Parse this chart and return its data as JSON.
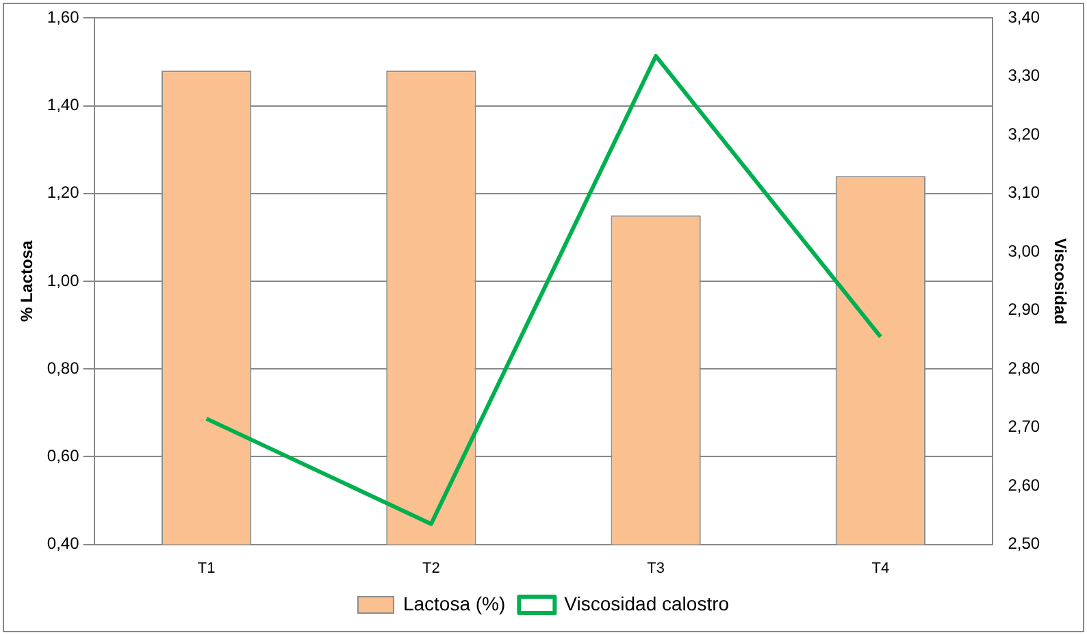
{
  "chart_data": {
    "type": "bar",
    "categories": [
      "T1",
      "T2",
      "T3",
      "T4"
    ],
    "series": [
      {
        "name": "Lactosa (%)",
        "color": "#fac090",
        "values": [
          1.48,
          1.48,
          1.15,
          1.24
        ]
      },
      {
        "name": "Viscosidad calostro",
        "type": "line",
        "axis": "y2",
        "color": "#00b050",
        "values": [
          2.715,
          2.535,
          3.335,
          2.855
        ]
      }
    ],
    "ylabel": "% Lactosa",
    "y2label": "Viscosidad",
    "ylim": [
      0.4,
      1.6
    ],
    "yticks": [
      {
        "value": 0.4,
        "label": "0,40"
      },
      {
        "value": 0.6,
        "label": "0,60"
      },
      {
        "value": 0.8,
        "label": "0,80"
      },
      {
        "value": 1.0,
        "label": "1,00"
      },
      {
        "value": 1.2,
        "label": "1,20"
      },
      {
        "value": 1.4,
        "label": "1,40"
      },
      {
        "value": 1.6,
        "label": "1,60"
      }
    ],
    "y2lim": [
      2.5,
      3.4
    ],
    "y2ticks": [
      {
        "value": 2.5,
        "label": "2,50"
      },
      {
        "value": 2.6,
        "label": "2,60"
      },
      {
        "value": 2.7,
        "label": "2,70"
      },
      {
        "value": 2.8,
        "label": "2,80"
      },
      {
        "value": 2.9,
        "label": "2,90"
      },
      {
        "value": 3.0,
        "label": "3,00"
      },
      {
        "value": 3.1,
        "label": "3,10"
      },
      {
        "value": 3.2,
        "label": "3,20"
      },
      {
        "value": 3.3,
        "label": "3,30"
      },
      {
        "value": 3.4,
        "label": "3,40"
      }
    ],
    "grid": "y",
    "legend": "bottom",
    "marker": "none"
  }
}
